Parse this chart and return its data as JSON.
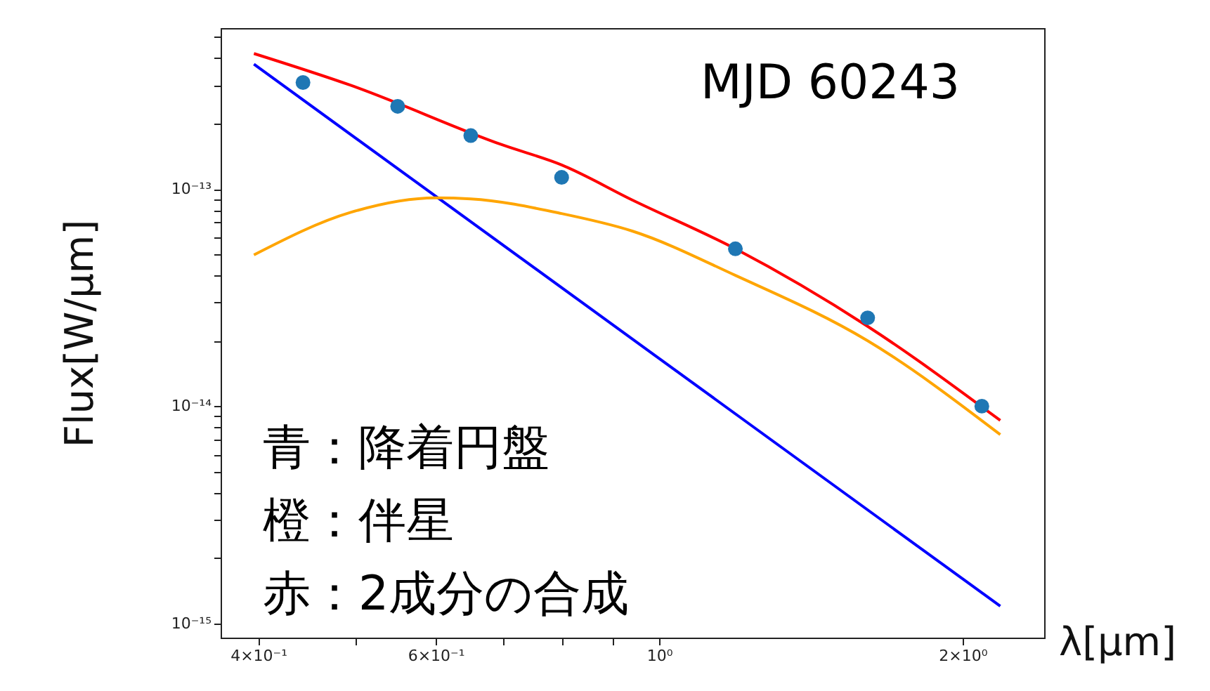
{
  "chart_data": {
    "type": "scatter",
    "xlabel": "λ[μm]",
    "ylabel": "Flux[W/μm]",
    "log": "xy",
    "grid": false,
    "annotations": [
      "MJD 60243",
      "青：降着円盤",
      "橙：伴星",
      "赤：2成分の合成"
    ],
    "xlim": [
      0.367,
      2.41
    ],
    "ylim": [
      8.6e-16,
      5.5e-13
    ],
    "xticks": [
      {
        "value": 0.4,
        "label": "4×10⁻¹"
      },
      {
        "value": 0.5,
        "label": null
      },
      {
        "value": 0.6,
        "label": "6×10⁻¹"
      },
      {
        "value": 0.7,
        "label": null
      },
      {
        "value": 0.8,
        "label": null
      },
      {
        "value": 0.9,
        "label": null
      },
      {
        "value": 1,
        "label": "10⁰"
      },
      {
        "value": 2,
        "label": "2×10⁰"
      }
    ],
    "yticks": [
      {
        "value": 1e-15,
        "label": "10⁻¹⁵"
      },
      {
        "value": 2e-15,
        "label": null
      },
      {
        "value": 3e-15,
        "label": null
      },
      {
        "value": 4e-15,
        "label": null
      },
      {
        "value": 5e-15,
        "label": null
      },
      {
        "value": 6e-15,
        "label": null
      },
      {
        "value": 7e-15,
        "label": null
      },
      {
        "value": 8e-15,
        "label": null
      },
      {
        "value": 9e-15,
        "label": null
      },
      {
        "value": 1e-14,
        "label": "10⁻¹⁴"
      },
      {
        "value": 2e-14,
        "label": null
      },
      {
        "value": 3e-14,
        "label": null
      },
      {
        "value": 4e-14,
        "label": null
      },
      {
        "value": 5e-14,
        "label": null
      },
      {
        "value": 6e-14,
        "label": null
      },
      {
        "value": 7e-14,
        "label": null
      },
      {
        "value": 8e-14,
        "label": null
      },
      {
        "value": 9e-14,
        "label": null
      },
      {
        "value": 1e-13,
        "label": "10⁻¹³"
      },
      {
        "value": 2e-13,
        "label": null
      },
      {
        "value": 3e-13,
        "label": null
      },
      {
        "value": 4e-13,
        "label": null
      },
      {
        "value": 5e-13,
        "label": null
      }
    ],
    "series": [
      {
        "type": "line",
        "color": "#0000ff",
        "line_style": "solid",
        "marker": "none",
        "x": [
          0.396,
          2.18
        ],
        "values": [
          3.75e-13,
          1.2e-15
        ]
      },
      {
        "type": "line",
        "color": "#ffa500",
        "line_style": "solid",
        "marker": "none",
        "x": [
          0.396,
          0.494,
          0.6,
          0.65,
          0.8,
          0.94,
          1.19,
          1.61,
          2.18
        ],
        "values": [
          4.97e-14,
          7.8e-14,
          9.1e-14,
          9e-14,
          7.7e-14,
          6.4e-14,
          4e-14,
          2e-14,
          7.4e-15
        ]
      },
      {
        "type": "line",
        "color": "#ff0000",
        "line_style": "solid",
        "marker": "none",
        "x": [
          0.396,
          0.494,
          0.7,
          0.8,
          0.94,
          1.19,
          1.61,
          2.18
        ],
        "values": [
          4.2e-13,
          3e-13,
          1.59e-13,
          1.29e-13,
          8.9e-14,
          5.3e-14,
          2.33e-14,
          8.6e-15
        ]
      },
      {
        "color": "#1f77b4",
        "marker": "circle",
        "x": [
          0.443,
          0.55,
          0.65,
          0.8,
          1.19,
          1.61,
          2.09
        ],
        "values": [
          3.09e-13,
          2.4e-13,
          1.76e-13,
          1.13e-13,
          5.3e-14,
          2.55e-14,
          1e-14
        ]
      }
    ]
  }
}
